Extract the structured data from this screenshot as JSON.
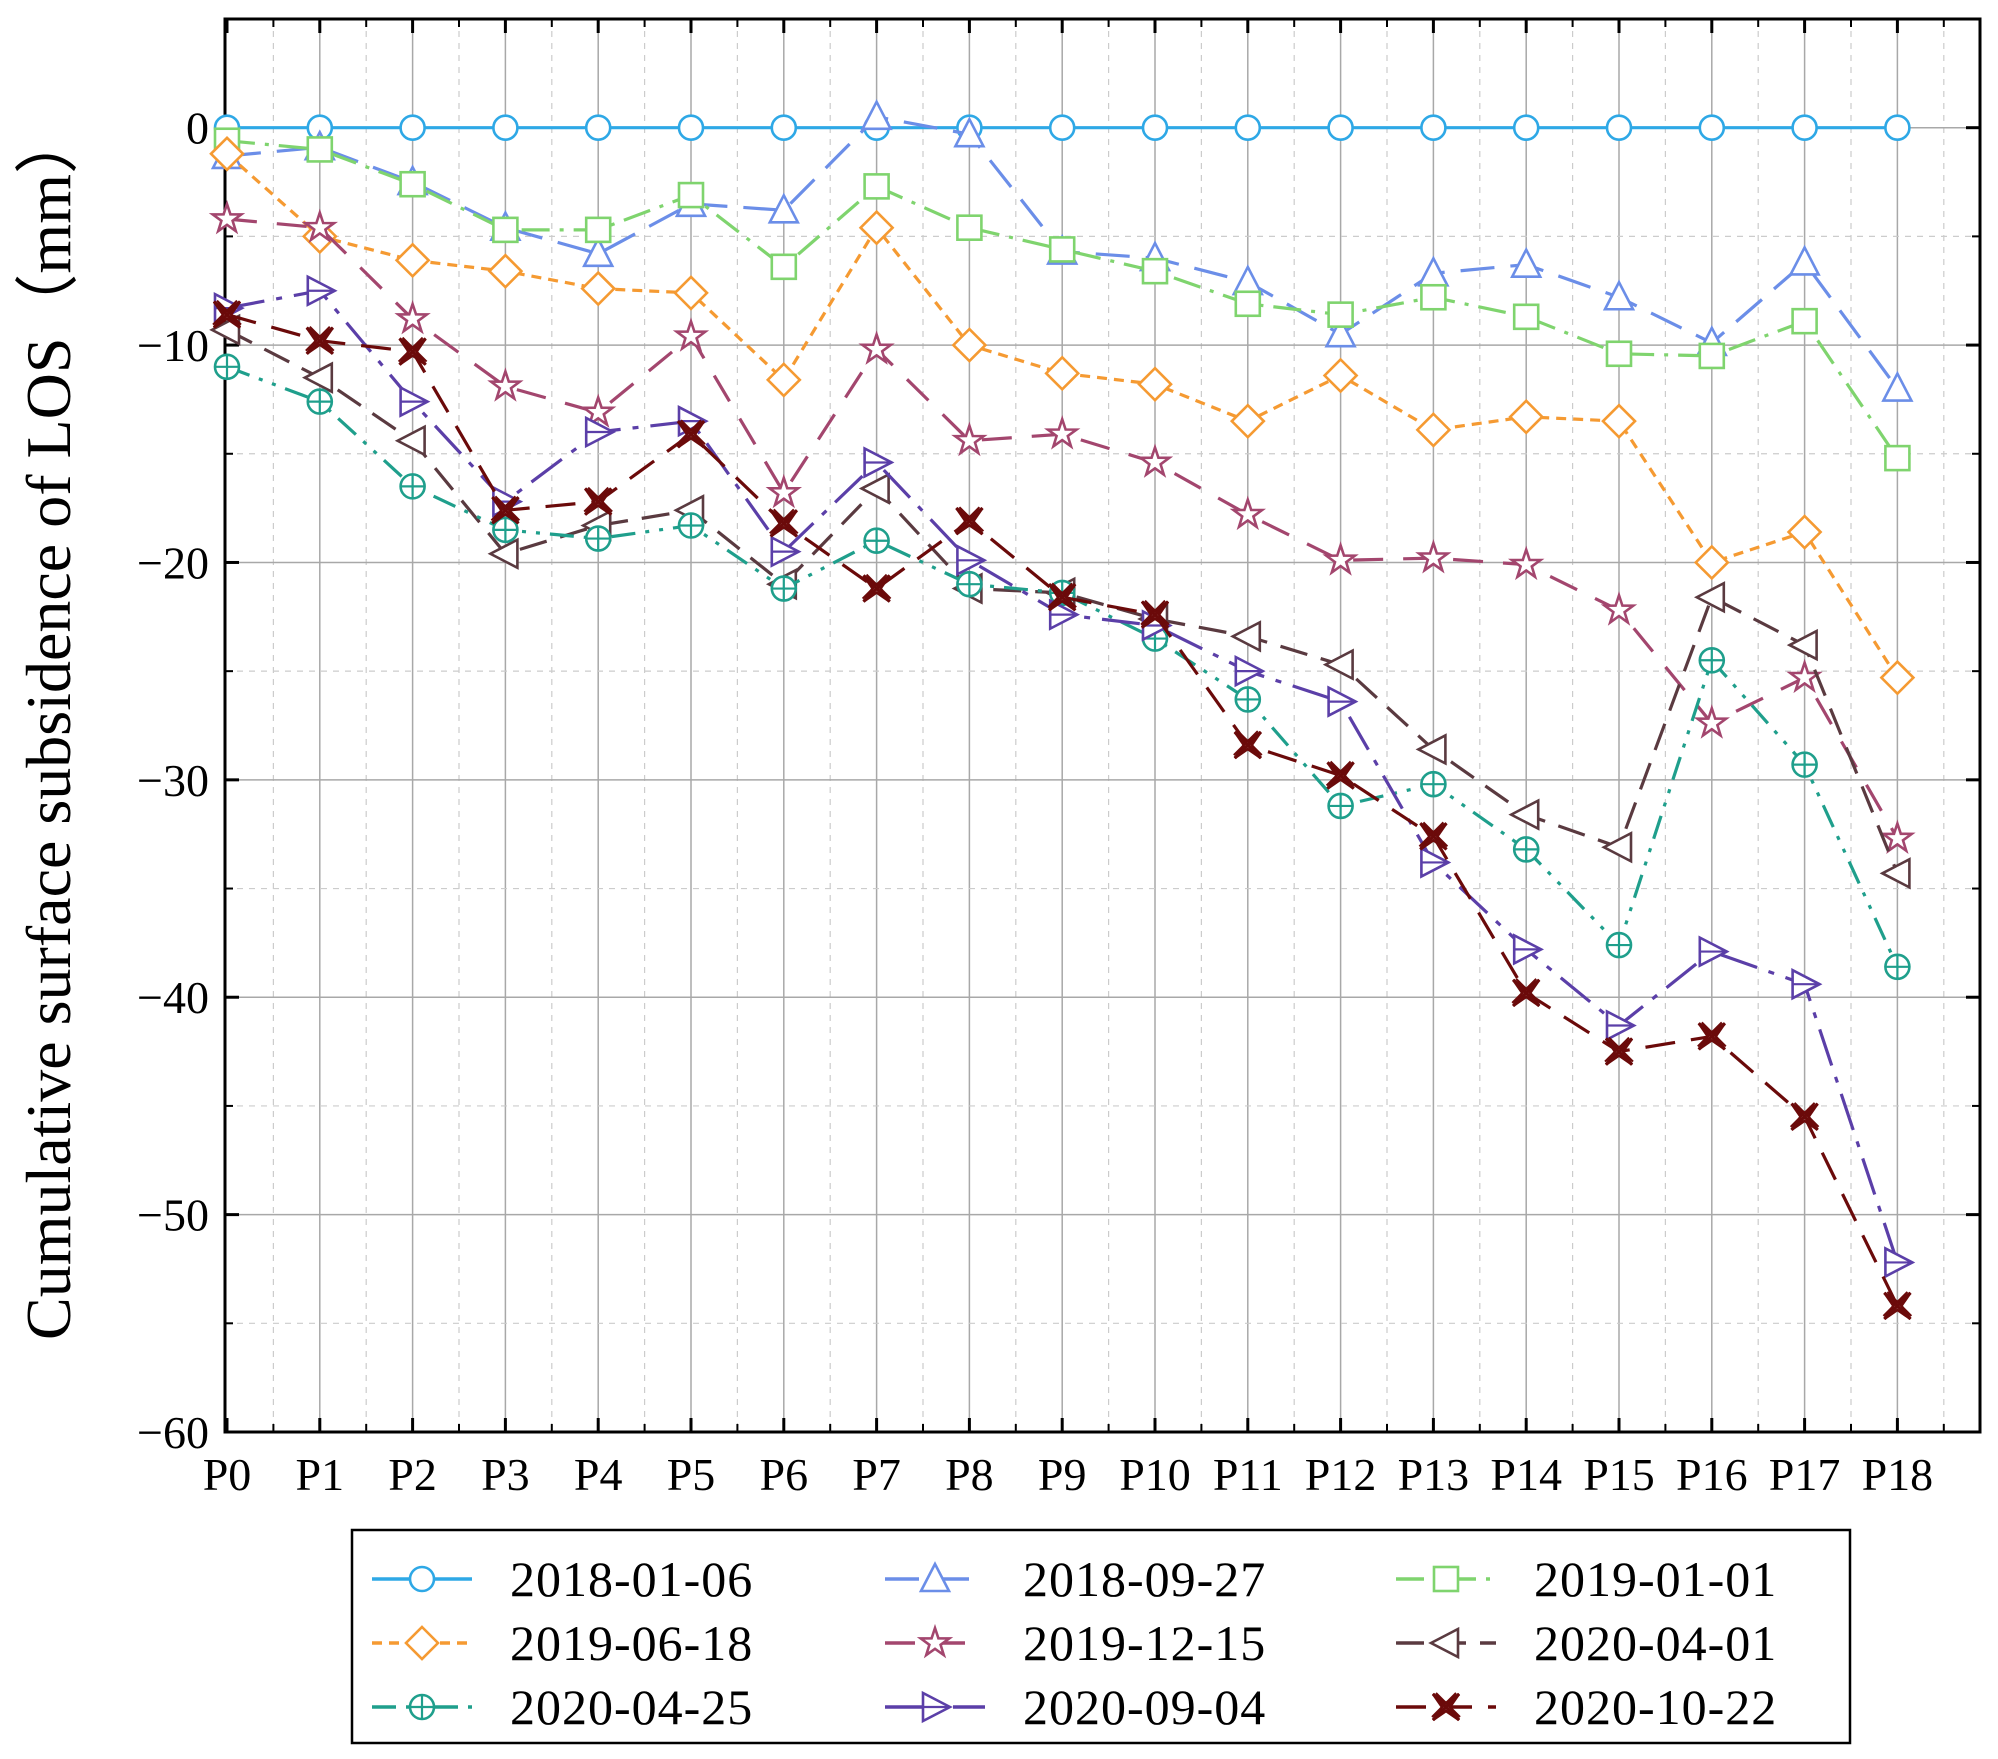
{
  "chart_data": {
    "type": "line",
    "title": "",
    "xlabel": "",
    "ylabel": "Cumulative surface subsidence of LOS（mm）",
    "ylim": [
      -60,
      5
    ],
    "yticks": [
      0,
      -10,
      -20,
      -30,
      -40,
      -50,
      -60
    ],
    "ytick_labels": [
      "0",
      "−10",
      "−20",
      "−30",
      "−40",
      "−50",
      "−60"
    ],
    "grid": true,
    "legend_position": "bottom",
    "categories": [
      "P0",
      "P1",
      "P2",
      "P3",
      "P4",
      "P5",
      "P6",
      "P7",
      "P8",
      "P9",
      "P10",
      "P11",
      "P12",
      "P13",
      "P14",
      "P15",
      "P16",
      "P17",
      "P18"
    ],
    "series": [
      {
        "name": "2018-01-06",
        "color": "#2ea8e6",
        "marker": "circle",
        "dash": "",
        "values": [
          0,
          0,
          0,
          0,
          0,
          0,
          0,
          0,
          0,
          0,
          0,
          0,
          0,
          0,
          0,
          0,
          0,
          0,
          0
        ]
      },
      {
        "name": "2018-09-27",
        "color": "#6b8ee8",
        "marker": "triangle-up",
        "dash": "34,16",
        "values": [
          -1.3,
          -0.9,
          -2.5,
          -4.6,
          -5.8,
          -3.5,
          -3.8,
          0.5,
          -0.3,
          -5.7,
          -6,
          -7.1,
          -9.5,
          -6.7,
          -6.3,
          -7.8,
          -9.9,
          -6.2,
          -12
        ]
      },
      {
        "name": "2019-01-01",
        "color": "#7fd46e",
        "marker": "square",
        "dash": "28,10,4,10",
        "values": [
          -0.6,
          -1,
          -2.6,
          -4.7,
          -4.7,
          -3.1,
          -6.4,
          -2.7,
          -4.6,
          -5.6,
          -6.6,
          -8.1,
          -8.6,
          -7.8,
          -8.7,
          -10.4,
          -10.5,
          -8.9,
          -15.2
        ]
      },
      {
        "name": "2019-06-18",
        "color": "#f59a32",
        "marker": "diamond",
        "dash": "10,7",
        "values": [
          -1.2,
          -5,
          -6.1,
          -6.6,
          -7.4,
          -7.6,
          -11.6,
          -4.6,
          -10,
          -11.3,
          -11.8,
          -13.5,
          -11.4,
          -13.9,
          -13.3,
          -13.5,
          -20,
          -18.6,
          -25.3
        ]
      },
      {
        "name": "2019-12-15",
        "color": "#a3466e",
        "marker": "star",
        "dash": "30,20",
        "values": [
          -4.2,
          -4.6,
          -8.8,
          -11.9,
          -13.1,
          -9.6,
          -16.8,
          -10.2,
          -14.4,
          -14.1,
          -15.4,
          -17.8,
          -19.9,
          -19.8,
          -20.1,
          -22.2,
          -27.4,
          -25.3,
          -32.7
        ]
      },
      {
        "name": "2020-04-01",
        "color": "#5a3a40",
        "marker": "triangle-left",
        "dash": "28,14",
        "values": [
          -9.3,
          -11.5,
          -14.4,
          -19.6,
          -18.3,
          -17.6,
          -21,
          -16.6,
          -21.2,
          -21.4,
          -22.6,
          -23.4,
          -24.7,
          -28.6,
          -31.6,
          -33.1,
          -21.6,
          -23.8,
          -34.3
        ]
      },
      {
        "name": "2020-04-25",
        "color": "#1f9f8c",
        "marker": "circle-plus",
        "dash": "24,10,4,10,4,10",
        "values": [
          -11,
          -12.6,
          -16.5,
          -18.5,
          -18.9,
          -18.3,
          -21.2,
          -19,
          -21,
          -21.4,
          -23.5,
          -26.3,
          -31.2,
          -30.2,
          -33.2,
          -37.6,
          -24.5,
          -29.3,
          -38.6
        ]
      },
      {
        "name": "2020-09-04",
        "color": "#5b3fa8",
        "marker": "triangle-right",
        "dash": "38,12,6,12",
        "values": [
          -8.3,
          -7.5,
          -12.6,
          -17.2,
          -14,
          -13.5,
          -19.5,
          -15.4,
          -19.9,
          -22.4,
          -22.9,
          -25,
          -26.4,
          -33.8,
          -37.8,
          -41.3,
          -37.9,
          -39.4,
          -52.2
        ]
      },
      {
        "name": "2020-10-22",
        "color": "#6b0a0a",
        "marker": "x-circle",
        "dash": "30,16",
        "values": [
          -8.6,
          -9.8,
          -10.3,
          -17.6,
          -17.2,
          -14.1,
          -18.2,
          -21.2,
          -18.1,
          -21.6,
          -22.4,
          -28.4,
          -29.8,
          -32.6,
          -39.8,
          -42.5,
          -41.8,
          -45.5,
          -54.2
        ]
      }
    ]
  }
}
